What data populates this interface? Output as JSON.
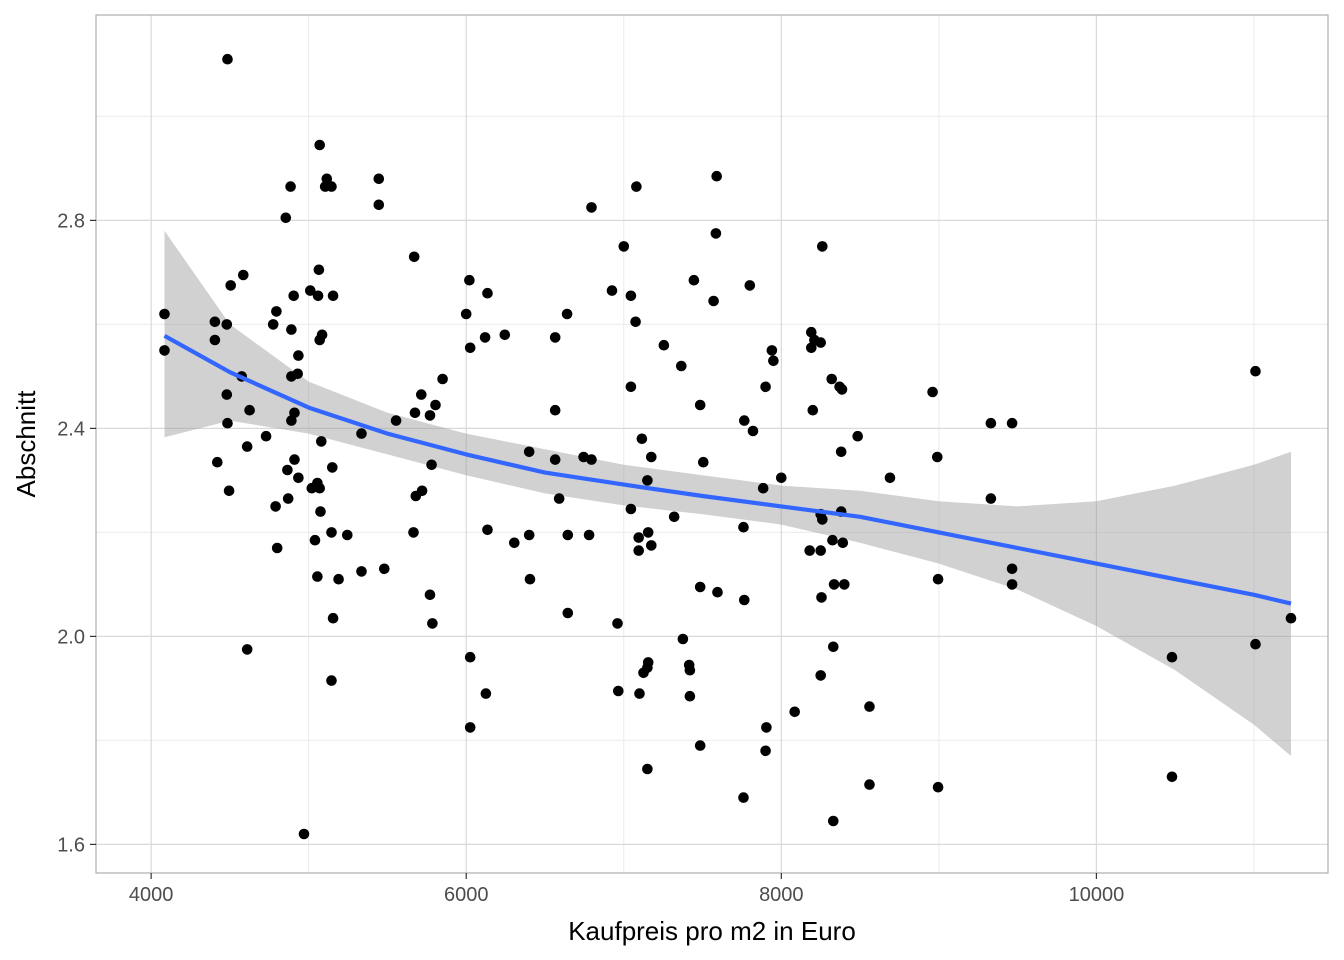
{
  "chart_data": {
    "type": "scatter",
    "title": "",
    "xlabel": "Kaufpreis pro m2 in Euro",
    "ylabel": "Abschnitt",
    "xlim": [
      3650,
      11470
    ],
    "ylim": [
      1.545,
      3.195
    ],
    "x_ticks": [
      4000,
      6000,
      8000,
      10000
    ],
    "x_tick_labels": [
      "4000",
      "6000",
      "8000",
      "10000"
    ],
    "y_ticks": [
      1.6,
      2.0,
      2.4,
      2.8
    ],
    "y_tick_labels": [
      "1.6",
      "2.0",
      "2.4",
      "2.8"
    ],
    "grid": true,
    "legend": "none",
    "colors": {
      "points": "#000000",
      "smooth_line": "#3366FF",
      "confidence_band": "#999999",
      "panel_border": "#b3b3b3",
      "grid_major": "#d9d9d9",
      "grid_minor": "#ebebeb"
    },
    "points": [
      [
        4485,
        3.11
      ],
      [
        5070,
        2.945
      ],
      [
        5115,
        2.88
      ],
      [
        5105,
        2.865
      ],
      [
        5145,
        2.865
      ],
      [
        5445,
        2.88
      ],
      [
        5445,
        2.83
      ],
      [
        4885,
        2.865
      ],
      [
        4855,
        2.805
      ],
      [
        5670,
        2.73
      ],
      [
        4585,
        2.695
      ],
      [
        4505,
        2.675
      ],
      [
        5065,
        2.705
      ],
      [
        4905,
        2.655
      ],
      [
        5010,
        2.665
      ],
      [
        5060,
        2.655
      ],
      [
        5155,
        2.655
      ],
      [
        4795,
        2.625
      ],
      [
        4405,
        2.605
      ],
      [
        4480,
        2.6
      ],
      [
        4775,
        2.6
      ],
      [
        4890,
        2.59
      ],
      [
        5085,
        2.58
      ],
      [
        5070,
        2.57
      ],
      [
        4405,
        2.57
      ],
      [
        4085,
        2.62
      ],
      [
        4085,
        2.55
      ],
      [
        4935,
        2.54
      ],
      [
        4575,
        2.5
      ],
      [
        4930,
        2.505
      ],
      [
        4890,
        2.5
      ],
      [
        5715,
        2.465
      ],
      [
        4480,
        2.465
      ],
      [
        5850,
        2.495
      ],
      [
        5805,
        2.445
      ],
      [
        4625,
        2.435
      ],
      [
        4890,
        2.415
      ],
      [
        4910,
        2.43
      ],
      [
        4485,
        2.41
      ],
      [
        5555,
        2.415
      ],
      [
        5675,
        2.43
      ],
      [
        5770,
        2.425
      ],
      [
        4730,
        2.385
      ],
      [
        5335,
        2.39
      ],
      [
        5080,
        2.375
      ],
      [
        4610,
        2.365
      ],
      [
        4420,
        2.335
      ],
      [
        4910,
        2.34
      ],
      [
        5150,
        2.325
      ],
      [
        4865,
        2.32
      ],
      [
        4935,
        2.305
      ],
      [
        5055,
        2.295
      ],
      [
        5070,
        2.285
      ],
      [
        5020,
        2.285
      ],
      [
        4495,
        2.28
      ],
      [
        5720,
        2.28
      ],
      [
        5680,
        2.27
      ],
      [
        4870,
        2.265
      ],
      [
        4790,
        2.25
      ],
      [
        5075,
        2.24
      ],
      [
        5780,
        2.33
      ],
      [
        5665,
        2.2
      ],
      [
        5145,
        2.2
      ],
      [
        5245,
        2.195
      ],
      [
        5040,
        2.185
      ],
      [
        4800,
        2.17
      ],
      [
        5055,
        2.115
      ],
      [
        5190,
        2.11
      ],
      [
        5335,
        2.125
      ],
      [
        5480,
        2.13
      ],
      [
        5770,
        2.08
      ],
      [
        5155,
        2.035
      ],
      [
        5785,
        2.025
      ],
      [
        4610,
        1.975
      ],
      [
        5145,
        1.915
      ],
      [
        4970,
        1.62
      ],
      [
        6000,
        2.62
      ],
      [
        6020,
        2.685
      ],
      [
        6135,
        2.66
      ],
      [
        6025,
        2.555
      ],
      [
        6120,
        2.575
      ],
      [
        6245,
        2.58
      ],
      [
        6565,
        2.575
      ],
      [
        6640,
        2.62
      ],
      [
        6565,
        2.435
      ],
      [
        6400,
        2.355
      ],
      [
        6565,
        2.34
      ],
      [
        6795,
        2.34
      ],
      [
        6745,
        2.345
      ],
      [
        6590,
        2.265
      ],
      [
        6135,
        2.205
      ],
      [
        6305,
        2.18
      ],
      [
        6400,
        2.195
      ],
      [
        6645,
        2.195
      ],
      [
        6780,
        2.195
      ],
      [
        6405,
        2.11
      ],
      [
        6645,
        2.045
      ],
      [
        6025,
        1.96
      ],
      [
        6125,
        1.89
      ],
      [
        6025,
        1.825
      ],
      [
        6795,
        2.825
      ],
      [
        7080,
        2.865
      ],
      [
        7590,
        2.885
      ],
      [
        7000,
        2.75
      ],
      [
        7585,
        2.775
      ],
      [
        6925,
        2.665
      ],
      [
        7045,
        2.655
      ],
      [
        7075,
        2.605
      ],
      [
        7445,
        2.685
      ],
      [
        7570,
        2.645
      ],
      [
        7800,
        2.675
      ],
      [
        7255,
        2.56
      ],
      [
        7365,
        2.52
      ],
      [
        7045,
        2.48
      ],
      [
        7485,
        2.445
      ],
      [
        7765,
        2.415
      ],
      [
        7820,
        2.395
      ],
      [
        7115,
        2.38
      ],
      [
        7175,
        2.345
      ],
      [
        7505,
        2.335
      ],
      [
        7150,
        2.3
      ],
      [
        7900,
        2.48
      ],
      [
        7940,
        2.55
      ],
      [
        7950,
        2.53
      ],
      [
        8000,
        2.305
      ],
      [
        7885,
        2.285
      ],
      [
        7045,
        2.245
      ],
      [
        7320,
        2.23
      ],
      [
        7155,
        2.2
      ],
      [
        7095,
        2.19
      ],
      [
        7175,
        2.175
      ],
      [
        7095,
        2.165
      ],
      [
        7760,
        2.21
      ],
      [
        7485,
        2.095
      ],
      [
        7595,
        2.085
      ],
      [
        7765,
        2.07
      ],
      [
        6960,
        2.025
      ],
      [
        7375,
        1.995
      ],
      [
        7155,
        1.95
      ],
      [
        7415,
        1.945
      ],
      [
        7150,
        1.94
      ],
      [
        7125,
        1.93
      ],
      [
        7420,
        1.935
      ],
      [
        6965,
        1.895
      ],
      [
        7100,
        1.89
      ],
      [
        7420,
        1.885
      ],
      [
        7485,
        1.79
      ],
      [
        7905,
        1.825
      ],
      [
        7900,
        1.78
      ],
      [
        7150,
        1.745
      ],
      [
        7760,
        1.69
      ],
      [
        8260,
        2.75
      ],
      [
        8190,
        2.585
      ],
      [
        8210,
        2.57
      ],
      [
        8250,
        2.565
      ],
      [
        8190,
        2.555
      ],
      [
        8320,
        2.495
      ],
      [
        8370,
        2.48
      ],
      [
        8385,
        2.475
      ],
      [
        8200,
        2.435
      ],
      [
        8485,
        2.385
      ],
      [
        8380,
        2.355
      ],
      [
        8250,
        2.235
      ],
      [
        8260,
        2.225
      ],
      [
        8380,
        2.24
      ],
      [
        8325,
        2.185
      ],
      [
        8390,
        2.18
      ],
      [
        8180,
        2.165
      ],
      [
        8250,
        2.165
      ],
      [
        8335,
        2.1
      ],
      [
        8400,
        2.1
      ],
      [
        8255,
        2.075
      ],
      [
        8330,
        1.98
      ],
      [
        8250,
        1.925
      ],
      [
        8085,
        1.855
      ],
      [
        8560,
        1.865
      ],
      [
        8560,
        1.715
      ],
      [
        8330,
        1.645
      ],
      [
        8690,
        2.305
      ],
      [
        8960,
        2.47
      ],
      [
        8990,
        2.345
      ],
      [
        8995,
        2.11
      ],
      [
        8995,
        1.71
      ],
      [
        9330,
        2.41
      ],
      [
        9330,
        2.265
      ],
      [
        9465,
        2.41
      ],
      [
        9465,
        2.13
      ],
      [
        9465,
        2.1
      ],
      [
        10480,
        1.96
      ],
      [
        10480,
        1.73
      ],
      [
        11010,
        2.51
      ],
      [
        11010,
        1.985
      ],
      [
        11235,
        2.035
      ]
    ],
    "smooth_line": {
      "x": [
        4085,
        4500,
        5000,
        5500,
        6000,
        6500,
        7000,
        7500,
        8000,
        8500,
        9000,
        9500,
        10000,
        10500,
        11000,
        11235
      ],
      "y": [
        2.578,
        2.508,
        2.44,
        2.39,
        2.35,
        2.315,
        2.292,
        2.27,
        2.25,
        2.23,
        2.2,
        2.17,
        2.14,
        2.11,
        2.08,
        2.063
      ]
    },
    "confidence_band": {
      "x": [
        4085,
        4500,
        5000,
        5500,
        6000,
        6500,
        7000,
        7500,
        8000,
        8500,
        9000,
        9500,
        10000,
        10500,
        11000,
        11235
      ],
      "upper": [
        2.78,
        2.6,
        2.49,
        2.43,
        2.39,
        2.36,
        2.33,
        2.31,
        2.29,
        2.28,
        2.26,
        2.25,
        2.26,
        2.29,
        2.33,
        2.355
      ],
      "lower": [
        2.383,
        2.415,
        2.39,
        2.35,
        2.31,
        2.275,
        2.252,
        2.235,
        2.215,
        2.18,
        2.14,
        2.09,
        2.02,
        1.935,
        1.83,
        1.77
      ]
    }
  }
}
